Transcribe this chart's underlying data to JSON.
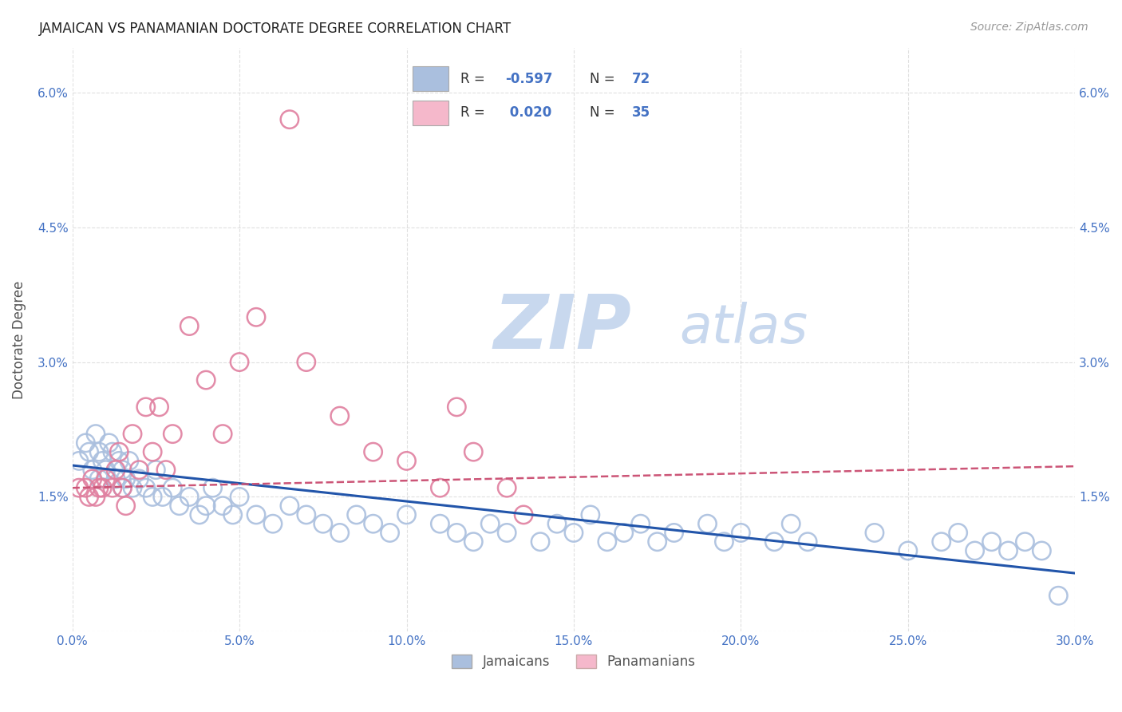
{
  "title": "JAMAICAN VS PANAMANIAN DOCTORATE DEGREE CORRELATION CHART",
  "source_text": "Source: ZipAtlas.com",
  "ylabel": "Doctorate Degree",
  "xlim": [
    0.0,
    0.3
  ],
  "ylim": [
    0.0,
    0.065
  ],
  "xticks": [
    0.0,
    0.05,
    0.1,
    0.15,
    0.2,
    0.25,
    0.3
  ],
  "xtick_labels": [
    "0.0%",
    "5.0%",
    "10.0%",
    "15.0%",
    "20.0%",
    "25.0%",
    "30.0%"
  ],
  "yticks": [
    0.0,
    0.015,
    0.03,
    0.045,
    0.06
  ],
  "ytick_labels_left": [
    "",
    "1.5%",
    "3.0%",
    "4.5%",
    "6.0%"
  ],
  "ytick_labels_right": [
    "",
    "1.5%",
    "3.0%",
    "4.5%",
    "6.0%"
  ],
  "background_color": "#ffffff",
  "grid_color": "#cccccc",
  "title_color": "#222222",
  "axis_label_color": "#555555",
  "tick_color": "#4472c4",
  "watermark_zip": "ZIP",
  "watermark_atlas": "atlas",
  "watermark_color_zip": "#c8d8ee",
  "watermark_color_atlas": "#c8d8ee",
  "blue_dot_color": "#aabfde",
  "blue_dot_edge": "#7aa0cc",
  "pink_dot_color": "#f5b8cb",
  "pink_dot_edge": "#e080a0",
  "blue_line_color": "#2255aa",
  "pink_line_color": "#cc5577",
  "jamaicans_label": "Jamaicans",
  "panamanians_label": "Panamanians",
  "blue_slope": -0.04,
  "blue_intercept": 0.0185,
  "pink_slope": 0.008,
  "pink_intercept": 0.016,
  "blue_points_x": [
    0.002,
    0.004,
    0.005,
    0.006,
    0.007,
    0.008,
    0.008,
    0.009,
    0.01,
    0.011,
    0.012,
    0.013,
    0.014,
    0.015,
    0.015,
    0.016,
    0.017,
    0.018,
    0.02,
    0.022,
    0.024,
    0.025,
    0.027,
    0.03,
    0.032,
    0.035,
    0.038,
    0.04,
    0.042,
    0.045,
    0.048,
    0.05,
    0.055,
    0.06,
    0.065,
    0.07,
    0.075,
    0.08,
    0.085,
    0.09,
    0.095,
    0.1,
    0.11,
    0.115,
    0.12,
    0.125,
    0.13,
    0.14,
    0.145,
    0.15,
    0.155,
    0.16,
    0.165,
    0.17,
    0.175,
    0.18,
    0.19,
    0.195,
    0.2,
    0.21,
    0.215,
    0.22,
    0.24,
    0.25,
    0.26,
    0.265,
    0.27,
    0.275,
    0.28,
    0.285,
    0.29,
    0.295
  ],
  "blue_points_y": [
    0.019,
    0.021,
    0.02,
    0.018,
    0.022,
    0.017,
    0.02,
    0.019,
    0.018,
    0.021,
    0.02,
    0.017,
    0.019,
    0.018,
    0.016,
    0.017,
    0.019,
    0.016,
    0.017,
    0.016,
    0.015,
    0.018,
    0.015,
    0.016,
    0.014,
    0.015,
    0.013,
    0.014,
    0.016,
    0.014,
    0.013,
    0.015,
    0.013,
    0.012,
    0.014,
    0.013,
    0.012,
    0.011,
    0.013,
    0.012,
    0.011,
    0.013,
    0.012,
    0.011,
    0.01,
    0.012,
    0.011,
    0.01,
    0.012,
    0.011,
    0.013,
    0.01,
    0.011,
    0.012,
    0.01,
    0.011,
    0.012,
    0.01,
    0.011,
    0.01,
    0.012,
    0.01,
    0.011,
    0.009,
    0.01,
    0.011,
    0.009,
    0.01,
    0.009,
    0.01,
    0.009,
    0.004
  ],
  "pink_points_x": [
    0.002,
    0.004,
    0.005,
    0.006,
    0.007,
    0.008,
    0.009,
    0.01,
    0.012,
    0.013,
    0.014,
    0.015,
    0.016,
    0.018,
    0.02,
    0.022,
    0.024,
    0.026,
    0.028,
    0.03,
    0.035,
    0.04,
    0.045,
    0.05,
    0.055,
    0.065,
    0.07,
    0.08,
    0.09,
    0.1,
    0.11,
    0.115,
    0.12,
    0.13,
    0.135
  ],
  "pink_points_y": [
    0.016,
    0.016,
    0.015,
    0.017,
    0.015,
    0.016,
    0.016,
    0.017,
    0.016,
    0.018,
    0.02,
    0.016,
    0.014,
    0.022,
    0.018,
    0.025,
    0.02,
    0.025,
    0.018,
    0.022,
    0.034,
    0.028,
    0.022,
    0.03,
    0.035,
    0.057,
    0.03,
    0.024,
    0.02,
    0.019,
    0.016,
    0.025,
    0.02,
    0.016,
    0.013
  ]
}
